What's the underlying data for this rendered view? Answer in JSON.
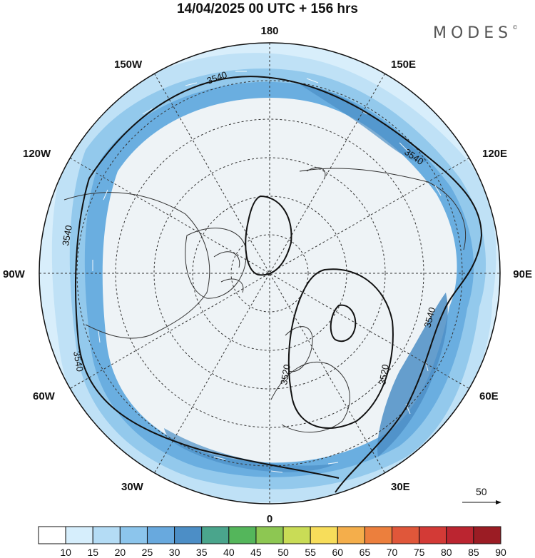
{
  "title": "14/04/2025  00 UTC  + 156 hrs",
  "brand": "MODES",
  "brand_mark": "©",
  "longitude_labels": {
    "top": "180",
    "bottom": "0",
    "left": "90W",
    "right": "90E",
    "upper_left": "150W",
    "left_upper": "120W",
    "left_lower": "60W",
    "lower_left": "30W",
    "upper_right": "150E",
    "right_upper": "120E",
    "right_lower": "60E",
    "lower_right": "30E"
  },
  "contours": {
    "outer": "3540",
    "inner": "3520",
    "label_values": [
      "3540",
      "3540",
      "3540",
      "3540",
      "3540",
      "3520",
      "3520"
    ]
  },
  "reference_vector": "50",
  "colorbar": {
    "ticks": [
      "10",
      "15",
      "20",
      "25",
      "30",
      "35",
      "40",
      "45",
      "50",
      "55",
      "60",
      "65",
      "70",
      "75",
      "80",
      "85",
      "90"
    ],
    "colors": [
      "#ffffff",
      "#d6eefc",
      "#b4dcf5",
      "#8cc5ec",
      "#68a9de",
      "#4c8ec6",
      "#4aa58c",
      "#54b65b",
      "#8dc752",
      "#c9dc56",
      "#f7dd5a",
      "#f4ae4b",
      "#ec7f3d",
      "#e0573a",
      "#d33a36",
      "#bb2530",
      "#9b1c24"
    ]
  }
}
